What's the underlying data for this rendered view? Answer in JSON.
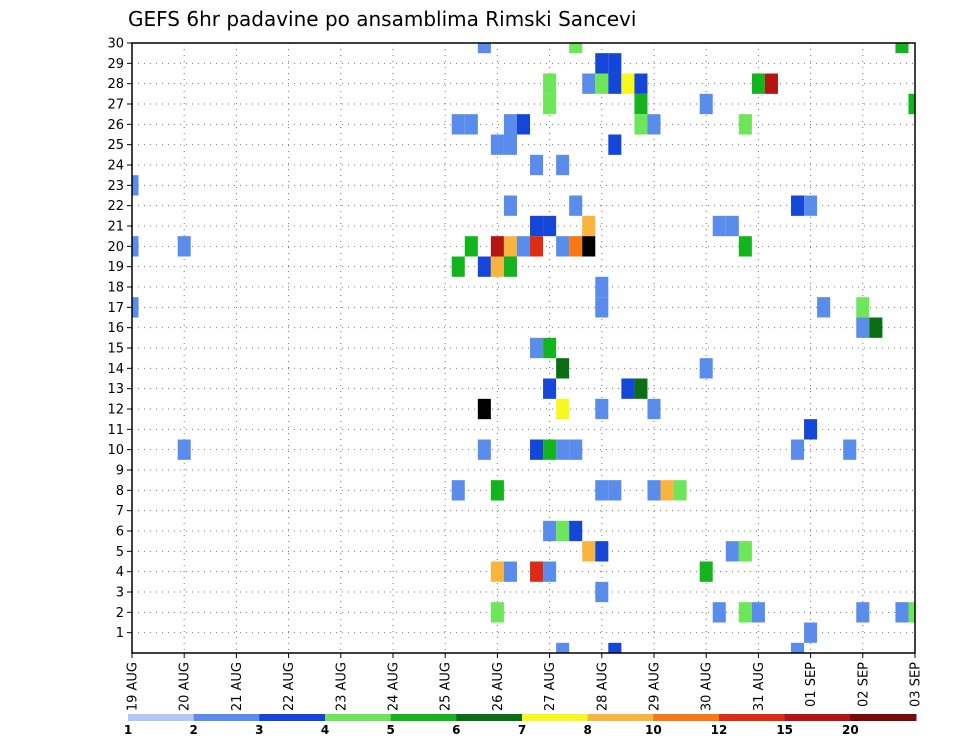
{
  "chart_data": {
    "type": "heatmap",
    "title": "GEFS 6hr padavine po ansamblima Rimski Sancevi",
    "x_tick_labels": [
      "19 AUG",
      "20 AUG",
      "21 AUG",
      "22 AUG",
      "23 AUG",
      "24 AUG",
      "25 AUG",
      "26 AUG",
      "27 AUG",
      "28 AUG",
      "29 AUG",
      "30 AUG",
      "31 AUG",
      "01 SEP",
      "02 SEP",
      "03 SEP"
    ],
    "y_tick_labels": [
      "1",
      "2",
      "3",
      "4",
      "5",
      "6",
      "7",
      "8",
      "9",
      "10",
      "11",
      "12",
      "13",
      "14",
      "15",
      "16",
      "17",
      "18",
      "19",
      "20",
      "21",
      "22",
      "23",
      "24",
      "25",
      "26",
      "27",
      "28",
      "29",
      "30"
    ],
    "xlim": [
      0,
      60
    ],
    "ylim": [
      0,
      30
    ],
    "grid": true,
    "colorbar": {
      "levels": [
        1,
        2,
        3,
        4,
        5,
        6,
        7,
        8,
        10,
        12,
        15,
        20
      ],
      "colors": [
        "#b4c8f8",
        "#5a8cec",
        "#1446d8",
        "#6ee65a",
        "#14b41e",
        "#0a6e14",
        "#f8f81e",
        "#f8b43c",
        "#f87814",
        "#dc2c14",
        "#b41414",
        "#780a0a"
      ]
    },
    "cells": [
      [
        27,
        30,
        1
      ],
      [
        34,
        30,
        3
      ],
      [
        59,
        30,
        4
      ],
      [
        36,
        29,
        2
      ],
      [
        37,
        29,
        2
      ],
      [
        32,
        28,
        3
      ],
      [
        35,
        28,
        1
      ],
      [
        36,
        28,
        3
      ],
      [
        37,
        28,
        2
      ],
      [
        38,
        28,
        6
      ],
      [
        39,
        28,
        2
      ],
      [
        48,
        28,
        4
      ],
      [
        49,
        28,
        10
      ],
      [
        32,
        27,
        3
      ],
      [
        39,
        27,
        4
      ],
      [
        44,
        27,
        1
      ],
      [
        60,
        27,
        4
      ],
      [
        25,
        26,
        1
      ],
      [
        26,
        26,
        1
      ],
      [
        29,
        26,
        1
      ],
      [
        30,
        26,
        2
      ],
      [
        39,
        26,
        3
      ],
      [
        40,
        26,
        1
      ],
      [
        47,
        26,
        3
      ],
      [
        28,
        25,
        1
      ],
      [
        29,
        25,
        1
      ],
      [
        37,
        25,
        2
      ],
      [
        31,
        24,
        1
      ],
      [
        33,
        24,
        1
      ],
      [
        0,
        23,
        1
      ],
      [
        29,
        22,
        1
      ],
      [
        34,
        22,
        1
      ],
      [
        51,
        22,
        2
      ],
      [
        52,
        22,
        1
      ],
      [
        31,
        21,
        2
      ],
      [
        32,
        21,
        2
      ],
      [
        35,
        21,
        7
      ],
      [
        45,
        21,
        1
      ],
      [
        46,
        21,
        1
      ],
      [
        0,
        20,
        1
      ],
      [
        4,
        20,
        1
      ],
      [
        26,
        20,
        4
      ],
      [
        28,
        20,
        10
      ],
      [
        29,
        20,
        7
      ],
      [
        30,
        20,
        1
      ],
      [
        31,
        20,
        9
      ],
      [
        33,
        20,
        1
      ],
      [
        34,
        20,
        8
      ],
      [
        35,
        20,
        12
      ],
      [
        47,
        20,
        4
      ],
      [
        25,
        19,
        4
      ],
      [
        27,
        19,
        2
      ],
      [
        28,
        19,
        7
      ],
      [
        29,
        19,
        4
      ],
      [
        36,
        18,
        1
      ],
      [
        0,
        17,
        1
      ],
      [
        36,
        17,
        1
      ],
      [
        53,
        17,
        1
      ],
      [
        56,
        17,
        3
      ],
      [
        56,
        16,
        1
      ],
      [
        57,
        16,
        5
      ],
      [
        31,
        15,
        1
      ],
      [
        32,
        15,
        4
      ],
      [
        33,
        14,
        5
      ],
      [
        44,
        14,
        1
      ],
      [
        32,
        13,
        2
      ],
      [
        38,
        13,
        2
      ],
      [
        39,
        13,
        5
      ],
      [
        27,
        12,
        12
      ],
      [
        33,
        12,
        6
      ],
      [
        36,
        12,
        1
      ],
      [
        40,
        12,
        1
      ],
      [
        52,
        11,
        2
      ],
      [
        4,
        10,
        1
      ],
      [
        27,
        10,
        1
      ],
      [
        31,
        10,
        2
      ],
      [
        32,
        10,
        4
      ],
      [
        33,
        10,
        1
      ],
      [
        34,
        10,
        1
      ],
      [
        51,
        10,
        1
      ],
      [
        55,
        10,
        1
      ],
      [
        25,
        8,
        1
      ],
      [
        28,
        8,
        4
      ],
      [
        36,
        8,
        1
      ],
      [
        37,
        8,
        1
      ],
      [
        40,
        8,
        1
      ],
      [
        41,
        8,
        7
      ],
      [
        42,
        8,
        3
      ],
      [
        32,
        6,
        1
      ],
      [
        33,
        6,
        3
      ],
      [
        34,
        6,
        2
      ],
      [
        35,
        5,
        7
      ],
      [
        36,
        5,
        2
      ],
      [
        46,
        5,
        1
      ],
      [
        47,
        5,
        3
      ],
      [
        28,
        4,
        7
      ],
      [
        29,
        4,
        1
      ],
      [
        31,
        4,
        9
      ],
      [
        32,
        4,
        1
      ],
      [
        44,
        4,
        4
      ],
      [
        36,
        3,
        1
      ],
      [
        28,
        2,
        3
      ],
      [
        45,
        2,
        1
      ],
      [
        47,
        2,
        3
      ],
      [
        48,
        2,
        1
      ],
      [
        56,
        2,
        1
      ],
      [
        59,
        2,
        1
      ],
      [
        60,
        2,
        3
      ],
      [
        52,
        1,
        1
      ],
      [
        33,
        0,
        1
      ],
      [
        37,
        0,
        2
      ],
      [
        51,
        0,
        1
      ]
    ]
  }
}
